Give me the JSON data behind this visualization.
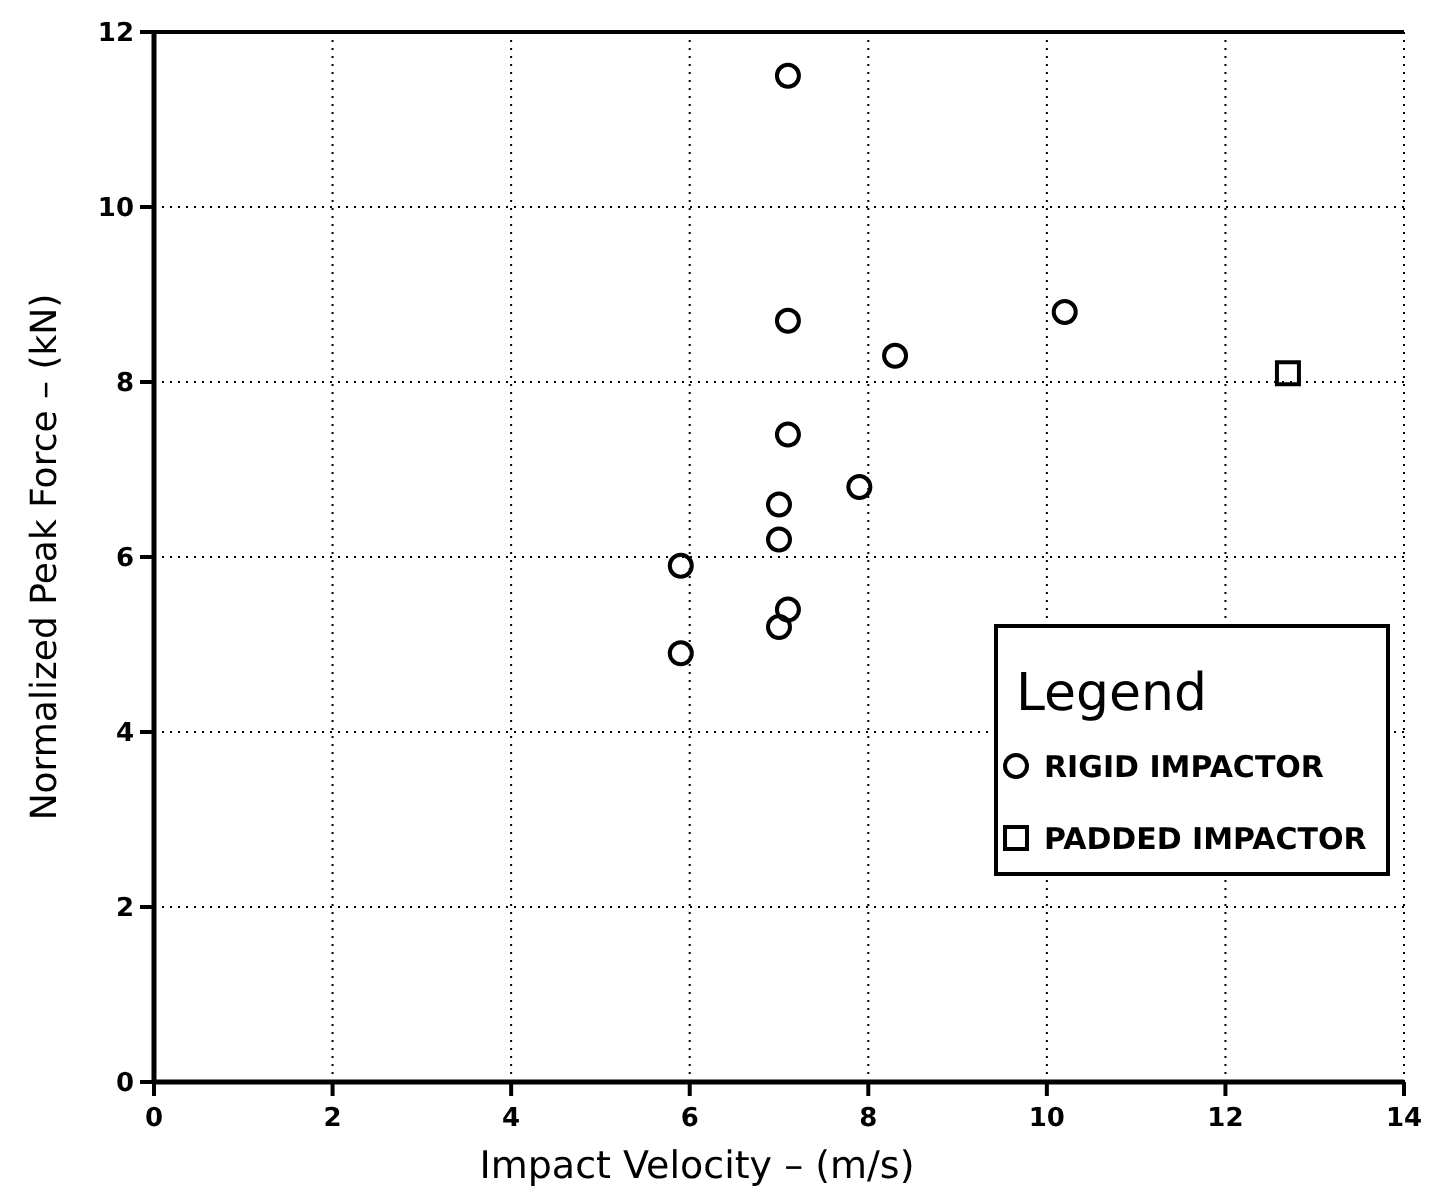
{
  "chart_data": {
    "type": "scatter",
    "xlabel": "Impact Velocity – (m/s)",
    "ylabel": "Normalized Peak Force – (kN)",
    "legend_title": "Legend",
    "legend": "bottom right",
    "grid": true,
    "xlim": [
      0,
      14
    ],
    "xticks": [
      0,
      2,
      4,
      6,
      8,
      10,
      12,
      14
    ],
    "ylim": [
      0,
      12
    ],
    "yticks": [
      0,
      2,
      4,
      6,
      8,
      10,
      12
    ],
    "series": [
      {
        "name": "RIGID IMPACTOR",
        "color": "#000000",
        "marker": "circle",
        "x": [
          7.1,
          7.1,
          8.3,
          10.2,
          7.1,
          7.9,
          7.0,
          7.0,
          5.9,
          7.1,
          7.0,
          5.9
        ],
        "values": [
          11.5,
          8.7,
          8.3,
          8.8,
          7.4,
          6.8,
          6.6,
          6.2,
          5.9,
          5.4,
          5.2,
          4.9
        ]
      },
      {
        "name": "PADDED IMPACTOR",
        "color": "#000000",
        "marker": "square",
        "x": [
          12.7
        ],
        "values": [
          8.1
        ]
      }
    ]
  }
}
